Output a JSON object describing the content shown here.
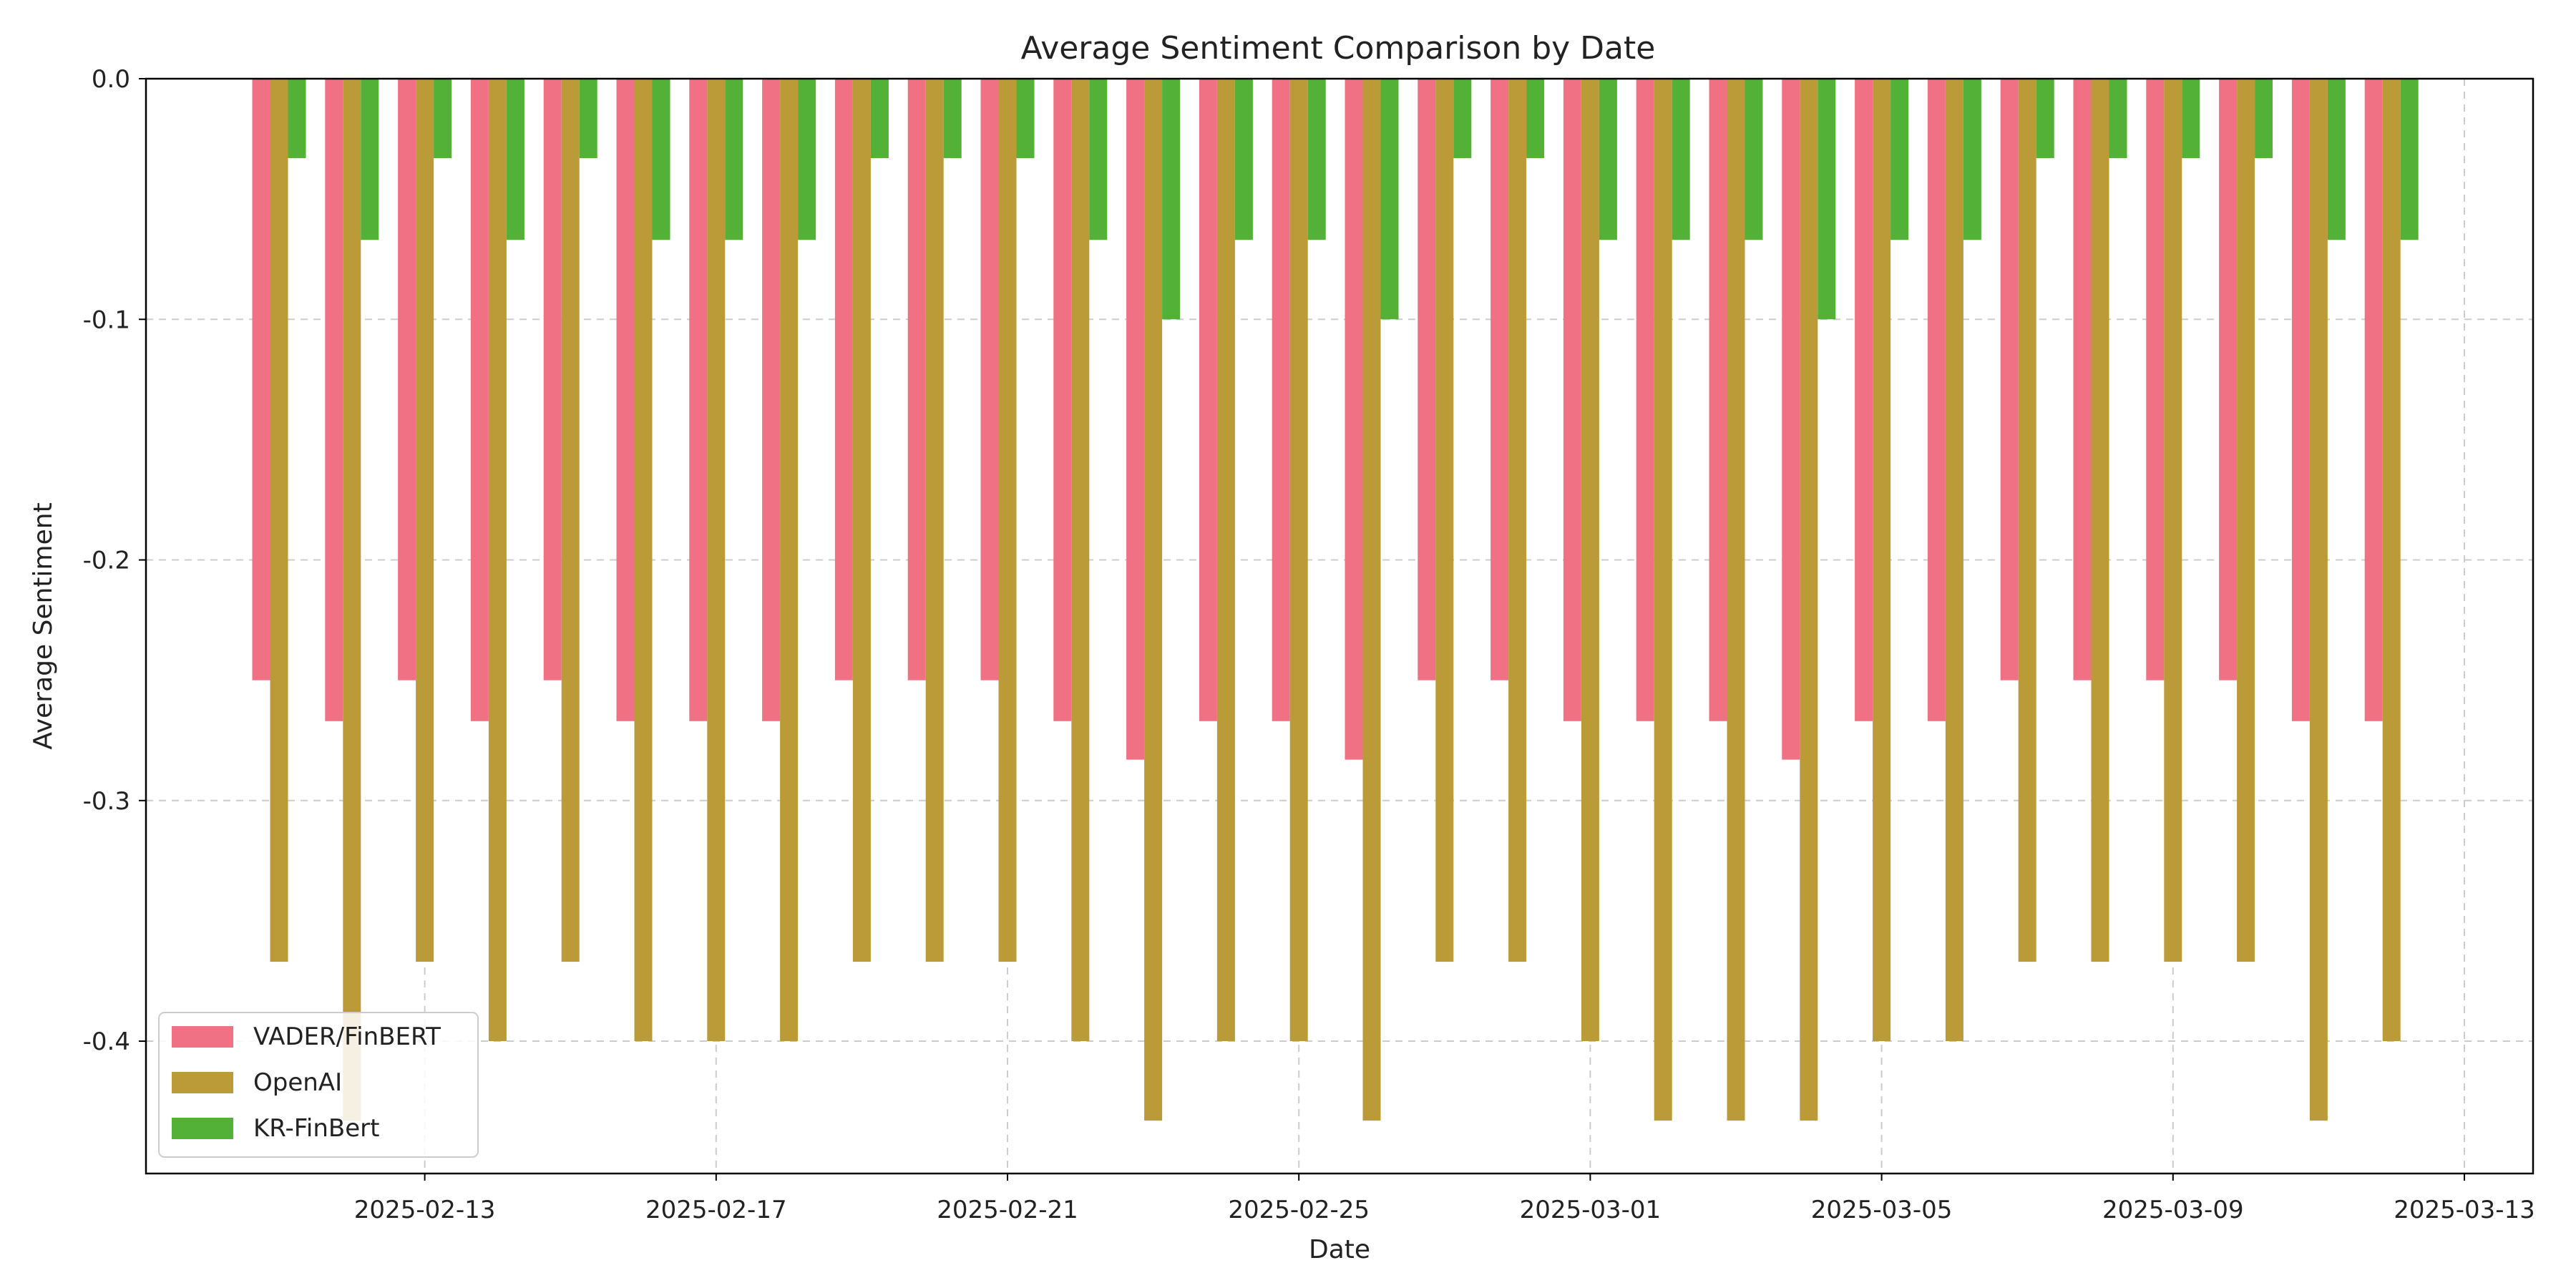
{
  "chart_data": {
    "type": "bar",
    "title": "Average Sentiment Comparison by Date",
    "xlabel": "Date",
    "ylabel": "Average Sentiment",
    "ylim": [
      -0.455,
      0.0
    ],
    "yticks": [
      0.0,
      -0.1,
      -0.2,
      -0.3,
      -0.4
    ],
    "ytick_labels": [
      "0.0",
      "-0.1",
      "-0.2",
      "-0.3",
      "-0.4"
    ],
    "xtick_labels": [
      "2025-02-13",
      "2025-02-17",
      "2025-02-21",
      "2025-02-25",
      "2025-03-01",
      "2025-03-05",
      "2025-03-09",
      "2025-03-13"
    ],
    "grid": true,
    "legend_position": "lower-left",
    "categories": [
      "2025-02-11",
      "2025-02-12",
      "2025-02-13",
      "2025-02-14",
      "2025-02-15",
      "2025-02-16",
      "2025-02-17",
      "2025-02-18",
      "2025-02-19",
      "2025-02-20",
      "2025-02-21",
      "2025-02-22",
      "2025-02-23",
      "2025-02-24",
      "2025-02-25",
      "2025-02-26",
      "2025-02-27",
      "2025-02-28",
      "2025-03-01",
      "2025-03-02",
      "2025-03-03",
      "2025-03-04",
      "2025-03-05",
      "2025-03-06",
      "2025-03-07",
      "2025-03-08",
      "2025-03-09",
      "2025-03-10",
      "2025-03-11",
      "2025-03-12"
    ],
    "series": [
      {
        "name": "VADER/FinBERT",
        "color": "#f07084",
        "values": [
          -0.25,
          -0.267,
          -0.25,
          -0.267,
          -0.25,
          -0.267,
          -0.267,
          -0.267,
          -0.25,
          -0.25,
          -0.25,
          -0.267,
          -0.283,
          -0.267,
          -0.267,
          -0.283,
          -0.25,
          -0.25,
          -0.267,
          -0.267,
          -0.267,
          -0.283,
          -0.267,
          -0.267,
          -0.25,
          -0.25,
          -0.25,
          -0.25,
          -0.267,
          -0.267
        ]
      },
      {
        "name": "OpenAI",
        "color": "#bb9b38",
        "values": [
          -0.367,
          -0.433,
          -0.367,
          -0.4,
          -0.367,
          -0.4,
          -0.4,
          -0.4,
          -0.367,
          -0.367,
          -0.367,
          -0.4,
          -0.433,
          -0.4,
          -0.4,
          -0.433,
          -0.367,
          -0.367,
          -0.4,
          -0.433,
          -0.433,
          -0.433,
          -0.4,
          -0.4,
          -0.367,
          -0.367,
          -0.367,
          -0.367,
          -0.433,
          -0.4
        ]
      },
      {
        "name": "KR-FinBert",
        "color": "#52b136",
        "values": [
          -0.033,
          -0.067,
          -0.033,
          -0.067,
          -0.033,
          -0.067,
          -0.067,
          -0.067,
          -0.033,
          -0.033,
          -0.033,
          -0.067,
          -0.1,
          -0.067,
          -0.067,
          -0.1,
          -0.033,
          -0.033,
          -0.067,
          -0.067,
          -0.067,
          -0.1,
          -0.067,
          -0.067,
          -0.033,
          -0.033,
          -0.033,
          -0.033,
          -0.067,
          -0.067
        ]
      }
    ]
  }
}
